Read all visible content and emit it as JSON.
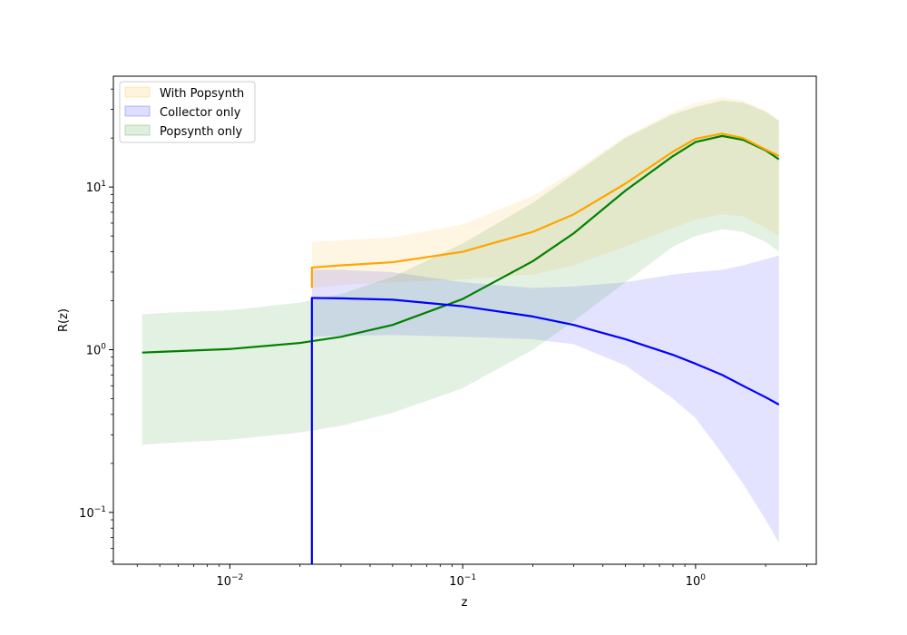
{
  "chart_data": {
    "type": "area",
    "xlabel": "z",
    "ylabel": "R(z)",
    "x_scale": "log",
    "y_scale": "log",
    "xlim": [
      0.00316,
      3.3
    ],
    "ylim": [
      0.048,
      48
    ],
    "x_ticks": [
      {
        "value": 0.01,
        "base": "10",
        "exp": "−2"
      },
      {
        "value": 0.1,
        "base": "10",
        "exp": "−1"
      },
      {
        "value": 1,
        "base": "10",
        "exp": "0"
      }
    ],
    "y_ticks": [
      {
        "value": 0.1,
        "base": "10",
        "exp": "−1"
      },
      {
        "value": 1,
        "base": "10",
        "exp": "0"
      },
      {
        "value": 10,
        "base": "10",
        "exp": "1"
      }
    ],
    "grid": false,
    "legend_position": "upper-left",
    "legend": [
      {
        "label": "With Popsynth",
        "color": "#ffa500"
      },
      {
        "label": "Collector only",
        "color": "#0000ff"
      },
      {
        "label": "Popsynth only",
        "color": "#008000"
      }
    ],
    "series": [
      {
        "name": "With Popsynth",
        "color": "#ffa500",
        "z": [
          0.0225,
          0.03,
          0.05,
          0.1,
          0.2,
          0.3,
          0.5,
          0.8,
          1.0,
          1.3,
          1.6,
          2.0,
          2.28
        ],
        "median": [
          3.2,
          3.3,
          3.45,
          4.0,
          5.3,
          6.8,
          10.5,
          16.5,
          19.8,
          21.3,
          20.0,
          17.0,
          15.5
        ],
        "lower": [
          2.4,
          2.5,
          2.6,
          2.7,
          2.9,
          3.3,
          4.3,
          5.6,
          6.3,
          6.8,
          6.6,
          5.6,
          5.0
        ],
        "upper": [
          4.6,
          4.7,
          4.9,
          5.9,
          8.8,
          12.5,
          20.5,
          29.0,
          33.0,
          35.5,
          34.0,
          29.5,
          25.8
        ]
      },
      {
        "name": "Collector only",
        "color": "#0000ff",
        "z": [
          0.0225,
          0.03,
          0.05,
          0.1,
          0.2,
          0.3,
          0.5,
          0.8,
          1.0,
          1.3,
          1.6,
          2.0,
          2.28
        ],
        "median": [
          2.08,
          2.07,
          2.03,
          1.85,
          1.6,
          1.42,
          1.16,
          0.93,
          0.82,
          0.7,
          0.6,
          0.51,
          0.46
        ],
        "lower": [
          1.2,
          1.22,
          1.23,
          1.2,
          1.16,
          1.08,
          0.8,
          0.5,
          0.38,
          0.23,
          0.15,
          0.09,
          0.065
        ],
        "upper": [
          3.1,
          3.1,
          3.0,
          2.6,
          2.4,
          2.45,
          2.6,
          2.9,
          3.0,
          3.1,
          3.3,
          3.6,
          3.8
        ],
        "drop_to_axis_at": 0.0225
      },
      {
        "name": "Popsynth only",
        "color": "#008000",
        "z": [
          0.0042,
          0.005,
          0.01,
          0.02,
          0.03,
          0.05,
          0.1,
          0.2,
          0.3,
          0.5,
          0.8,
          1.0,
          1.3,
          1.6,
          2.0,
          2.28
        ],
        "median": [
          0.96,
          0.97,
          1.01,
          1.1,
          1.2,
          1.42,
          2.05,
          3.5,
          5.2,
          9.5,
          15.5,
          18.9,
          20.6,
          19.5,
          16.8,
          14.8
        ],
        "lower": [
          0.26,
          0.265,
          0.28,
          0.31,
          0.34,
          0.41,
          0.58,
          1.0,
          1.5,
          2.6,
          4.3,
          5.0,
          5.5,
          5.3,
          4.6,
          4.0
        ],
        "upper": [
          1.65,
          1.68,
          1.75,
          1.95,
          2.2,
          2.8,
          4.5,
          8.0,
          12.0,
          20.0,
          28.0,
          31.0,
          34.0,
          33.0,
          29.0,
          25.5
        ]
      }
    ]
  }
}
